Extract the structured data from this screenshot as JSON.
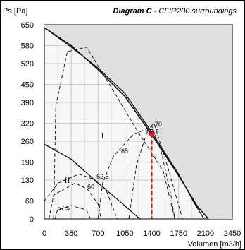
{
  "chart_data": {
    "type": "line",
    "title": "Diagram C",
    "subtitle": "- CFIR200 surroundings",
    "ylabel": "Ps [Pa]",
    "xlabel": "Volumen [m3/h]",
    "xlim": [
      0,
      2450
    ],
    "ylim": [
      0,
      650
    ],
    "x_ticks": [
      "0",
      "350",
      "700",
      "1050",
      "1400",
      "1750",
      "2100",
      "2450"
    ],
    "y_ticks": [
      "0",
      "60",
      "130",
      "190",
      "260",
      "320",
      "390",
      "450",
      "520",
      "580",
      "650"
    ],
    "grid": true,
    "fan_curves": [
      {
        "label": "I",
        "points": [
          [
            0,
            640
          ],
          [
            350,
            575
          ],
          [
            700,
            505
          ],
          [
            1050,
            420
          ],
          [
            1400,
            290
          ],
          [
            1750,
            150
          ],
          [
            1950,
            55
          ],
          [
            2080,
            0
          ]
        ]
      },
      {
        "label": "II",
        "points": [
          [
            0,
            250
          ],
          [
            350,
            200
          ],
          [
            700,
            120
          ],
          [
            1000,
            55
          ],
          [
            1200,
            10
          ],
          [
            1250,
            0
          ]
        ]
      }
    ],
    "system_curve": {
      "points": [
        [
          0,
          640
        ],
        [
          350,
          580
        ],
        [
          700,
          500
        ],
        [
          1050,
          410
        ],
        [
          1400,
          282
        ],
        [
          1750,
          145
        ],
        [
          2000,
          40
        ],
        [
          2140,
          0
        ]
      ]
    },
    "efficiency_contours": [
      {
        "label": "70",
        "points": [
          [
            1100,
            0
          ],
          [
            1200,
            180
          ],
          [
            1350,
            300
          ],
          [
            1430,
            320
          ],
          [
            1600,
            180
          ],
          [
            1800,
            0
          ]
        ]
      },
      {
        "label": "67,5",
        "points": [
          [
            700,
            0
          ],
          [
            760,
            120
          ],
          [
            900,
            210
          ],
          [
            1150,
            280
          ],
          [
            1400,
            310
          ],
          [
            1520,
            230
          ],
          [
            1650,
            80
          ],
          [
            1700,
            0
          ]
        ]
      },
      {
        "label": "65",
        "points": [
          [
            120,
            0
          ],
          [
            150,
            380
          ],
          [
            300,
            560
          ],
          [
            550,
            575
          ],
          [
            850,
            450
          ],
          [
            1200,
            300
          ],
          [
            1550,
            160
          ],
          [
            1700,
            0
          ]
        ]
      },
      {
        "label": "62,5",
        "points": [
          [
            0,
            60
          ],
          [
            180,
            120
          ],
          [
            450,
            150
          ],
          [
            620,
            135
          ],
          [
            800,
            100
          ],
          [
            950,
            0
          ]
        ]
      },
      {
        "label": "60",
        "points": [
          [
            60,
            0
          ],
          [
            120,
            80
          ],
          [
            400,
            120
          ],
          [
            560,
            100
          ],
          [
            700,
            50
          ],
          [
            740,
            0
          ]
        ]
      },
      {
        "label": "57,5",
        "points": [
          [
            140,
            0
          ],
          [
            170,
            30
          ],
          [
            350,
            45
          ],
          [
            550,
            30
          ],
          [
            600,
            0
          ]
        ]
      }
    ],
    "curve_labels": [
      "I",
      "II"
    ],
    "operating_point": {
      "x": 1400,
      "y": 285
    }
  }
}
